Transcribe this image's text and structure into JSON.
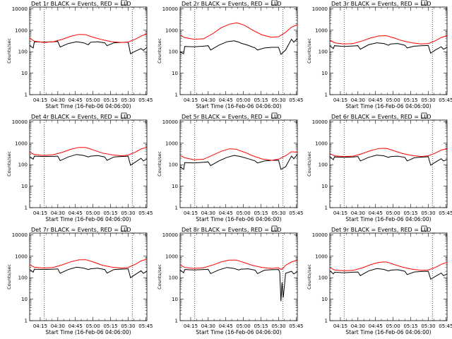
{
  "figure": {
    "y_axis_label": "Counts/sec",
    "x_axis_label": "Start Time (16-Feb-06 04:06:00)",
    "x_tick_labels": [
      "04:15",
      "04:30",
      "04:45",
      "05:00",
      "05:15",
      "05:30",
      "05:45"
    ],
    "y_tick_labels": [
      "1",
      "10",
      "100",
      "1000",
      "10000"
    ]
  },
  "chart_data": [
    {
      "type": "line",
      "title": "Det 1r BLACK = Events, RED = LLD",
      "ylim": [
        1,
        12000
      ],
      "yscale": "log",
      "x_unit": "minutes after 04:06:00",
      "xlim": [
        0,
        100
      ],
      "vlines": [
        12.5,
        87.5
      ],
      "series": [
        {
          "color": "#000000",
          "x": [
            0,
            3,
            4,
            12,
            20,
            24,
            26,
            33,
            40,
            46,
            50,
            52,
            58,
            64,
            66,
            72,
            78,
            84,
            86,
            90,
            95,
            97,
            100
          ],
          "y": [
            190,
            150,
            290,
            280,
            290,
            300,
            165,
            240,
            290,
            260,
            210,
            275,
            290,
            260,
            190,
            260,
            270,
            280,
            80,
            105,
            140,
            115,
            160
          ]
        },
        {
          "color": "#ff0000",
          "x": [
            0,
            4,
            12,
            20,
            28,
            35,
            42,
            48,
            50,
            55,
            62,
            70,
            78,
            84,
            90,
            95,
            100
          ],
          "y": [
            430,
            310,
            270,
            290,
            380,
            520,
            640,
            620,
            560,
            460,
            360,
            290,
            270,
            280,
            380,
            530,
            700
          ]
        }
      ]
    },
    {
      "type": "line",
      "title": "Det 2r BLACK = Events, RED = LLD",
      "ylim": [
        1,
        12000
      ],
      "yscale": "log",
      "x_unit": "minutes after 04:06:00",
      "xlim": [
        0,
        100
      ],
      "vlines": [
        12.5,
        87.5
      ],
      "series": [
        {
          "color": "#000000",
          "x": [
            0,
            3,
            4,
            12,
            20,
            24,
            26,
            33,
            40,
            46,
            50,
            52,
            58,
            64,
            66,
            72,
            78,
            84,
            86,
            90,
            95,
            97,
            100
          ],
          "y": [
            100,
            80,
            175,
            170,
            180,
            190,
            120,
            200,
            290,
            320,
            280,
            250,
            200,
            150,
            120,
            150,
            160,
            160,
            75,
            120,
            380,
            280,
            400
          ]
        },
        {
          "color": "#ff0000",
          "x": [
            0,
            4,
            12,
            20,
            28,
            35,
            42,
            48,
            50,
            55,
            62,
            70,
            78,
            84,
            90,
            95,
            100
          ],
          "y": [
            600,
            450,
            380,
            400,
            700,
            1300,
            1900,
            2200,
            2100,
            1700,
            1000,
            600,
            470,
            500,
            800,
            1400,
            1800
          ]
        }
      ]
    },
    {
      "type": "line",
      "title": "Det 3r BLACK = Events, RED = LLD",
      "ylim": [
        1,
        12000
      ],
      "yscale": "log",
      "x_unit": "minutes after 04:06:00",
      "xlim": [
        0,
        100
      ],
      "vlines": [
        12.5,
        87.5
      ],
      "series": [
        {
          "color": "#000000",
          "x": [
            0,
            3,
            4,
            12,
            20,
            24,
            26,
            33,
            40,
            46,
            50,
            52,
            58,
            64,
            66,
            72,
            78,
            84,
            86,
            90,
            95,
            97,
            100
          ],
          "y": [
            190,
            140,
            190,
            175,
            185,
            190,
            130,
            210,
            260,
            240,
            200,
            230,
            240,
            200,
            150,
            180,
            190,
            195,
            85,
            120,
            170,
            130,
            160
          ]
        },
        {
          "color": "#ff0000",
          "x": [
            0,
            4,
            12,
            20,
            28,
            35,
            42,
            48,
            50,
            55,
            62,
            70,
            78,
            84,
            90,
            95,
            100
          ],
          "y": [
            350,
            260,
            230,
            240,
            320,
            440,
            540,
            560,
            520,
            430,
            320,
            260,
            230,
            240,
            320,
            460,
            560
          ]
        }
      ]
    },
    {
      "type": "line",
      "title": "Det 4r BLACK = Events, RED = LLD",
      "ylim": [
        1,
        12000
      ],
      "yscale": "log",
      "x_unit": "minutes after 04:06:00",
      "xlim": [
        0,
        100
      ],
      "vlines": [
        12.5,
        87.5
      ],
      "series": [
        {
          "color": "#000000",
          "x": [
            0,
            3,
            4,
            12,
            20,
            24,
            26,
            33,
            40,
            46,
            50,
            52,
            58,
            64,
            66,
            72,
            78,
            84,
            86,
            90,
            95,
            97,
            100
          ],
          "y": [
            240,
            180,
            250,
            240,
            245,
            250,
            155,
            230,
            300,
            270,
            230,
            250,
            265,
            230,
            160,
            230,
            240,
            250,
            95,
            130,
            200,
            150,
            185
          ]
        },
        {
          "color": "#ff0000",
          "x": [
            0,
            4,
            12,
            20,
            28,
            35,
            42,
            48,
            50,
            55,
            62,
            70,
            78,
            84,
            90,
            95,
            100
          ],
          "y": [
            380,
            300,
            270,
            290,
            380,
            520,
            640,
            630,
            580,
            470,
            350,
            290,
            260,
            280,
            380,
            540,
            640
          ]
        }
      ]
    },
    {
      "type": "line",
      "title": "Det 5r BLACK = Events, RED = LLD",
      "ylim": [
        1,
        12000
      ],
      "yscale": "log",
      "x_unit": "minutes after 04:06:00",
      "xlim": [
        0,
        100
      ],
      "vlines": [
        12.5,
        87.5
      ],
      "series": [
        {
          "color": "#000000",
          "x": [
            0,
            3,
            4,
            12,
            20,
            24,
            26,
            33,
            40,
            46,
            50,
            52,
            58,
            64,
            66,
            72,
            78,
            84,
            86,
            90,
            95,
            97,
            100
          ],
          "y": [
            80,
            60,
            125,
            120,
            130,
            135,
            90,
            150,
            220,
            270,
            250,
            235,
            190,
            150,
            120,
            150,
            160,
            160,
            60,
            80,
            250,
            190,
            300
          ]
        },
        {
          "color": "#ff0000",
          "x": [
            0,
            4,
            12,
            20,
            28,
            35,
            42,
            48,
            50,
            55,
            62,
            70,
            78,
            84,
            90,
            95,
            100
          ],
          "y": [
            270,
            210,
            170,
            180,
            280,
            420,
            550,
            530,
            470,
            380,
            260,
            185,
            160,
            180,
            260,
            400,
            380
          ]
        }
      ]
    },
    {
      "type": "line",
      "title": "Det 6r BLACK = Events, RED = LLD",
      "ylim": [
        1,
        12000
      ],
      "yscale": "log",
      "x_unit": "minutes after 04:06:00",
      "xlim": [
        0,
        100
      ],
      "vlines": [
        12.5,
        87.5
      ],
      "series": [
        {
          "color": "#000000",
          "x": [
            0,
            3,
            4,
            12,
            20,
            24,
            26,
            33,
            40,
            46,
            50,
            52,
            58,
            64,
            66,
            72,
            78,
            84,
            86,
            90,
            95,
            97,
            100
          ],
          "y": [
            240,
            170,
            230,
            220,
            230,
            240,
            150,
            220,
            280,
            260,
            220,
            240,
            250,
            220,
            150,
            210,
            225,
            235,
            95,
            130,
            190,
            150,
            175
          ]
        },
        {
          "color": "#ff0000",
          "x": [
            0,
            4,
            12,
            20,
            28,
            35,
            42,
            48,
            50,
            55,
            62,
            70,
            78,
            84,
            90,
            95,
            100
          ],
          "y": [
            330,
            260,
            240,
            250,
            330,
            460,
            570,
            580,
            540,
            440,
            330,
            270,
            240,
            260,
            350,
            480,
            560
          ]
        }
      ]
    },
    {
      "type": "line",
      "title": "Det 7r BLACK = Events, RED = LLD",
      "ylim": [
        1,
        12000
      ],
      "yscale": "log",
      "x_unit": "minutes after 04:06:00",
      "xlim": [
        0,
        100
      ],
      "vlines": [
        12.5,
        87.5
      ],
      "series": [
        {
          "color": "#000000",
          "x": [
            0,
            3,
            4,
            12,
            20,
            24,
            26,
            33,
            40,
            46,
            50,
            52,
            58,
            64,
            66,
            72,
            78,
            84,
            86,
            90,
            95,
            97,
            100
          ],
          "y": [
            240,
            180,
            250,
            240,
            250,
            255,
            160,
            240,
            310,
            280,
            240,
            260,
            275,
            240,
            165,
            240,
            250,
            260,
            100,
            140,
            210,
            160,
            200
          ]
        },
        {
          "color": "#ff0000",
          "x": [
            0,
            4,
            12,
            20,
            28,
            35,
            42,
            48,
            50,
            55,
            62,
            70,
            78,
            84,
            90,
            95,
            100
          ],
          "y": [
            400,
            310,
            280,
            300,
            400,
            550,
            680,
            690,
            640,
            520,
            380,
            310,
            280,
            300,
            420,
            600,
            740
          ]
        }
      ]
    },
    {
      "type": "line",
      "title": "Det 8r BLACK = Events, RED = LLD",
      "ylim": [
        1,
        12000
      ],
      "yscale": "log",
      "x_unit": "minutes after 04:06:00",
      "xlim": [
        0,
        100
      ],
      "vlines": [
        12.5,
        87.5
      ],
      "series": [
        {
          "color": "#000000",
          "x": [
            0,
            3,
            4,
            12,
            20,
            24,
            26,
            33,
            40,
            46,
            50,
            52,
            58,
            64,
            66,
            72,
            78,
            84,
            85,
            86,
            87,
            88,
            90,
            95,
            97,
            100
          ],
          "y": [
            230,
            170,
            240,
            230,
            240,
            245,
            155,
            230,
            300,
            270,
            230,
            250,
            260,
            225,
            155,
            225,
            235,
            240,
            180,
            8,
            60,
            12,
            160,
            200,
            150,
            190
          ]
        },
        {
          "color": "#ff0000",
          "x": [
            0,
            4,
            12,
            20,
            28,
            35,
            42,
            48,
            50,
            55,
            62,
            70,
            78,
            84,
            86,
            88,
            90,
            95,
            100
          ],
          "y": [
            390,
            300,
            270,
            290,
            390,
            540,
            660,
            660,
            610,
            500,
            370,
            300,
            270,
            290,
            240,
            280,
            380,
            540,
            650
          ]
        }
      ]
    },
    {
      "type": "line",
      "title": "Det 9r BLACK = Events, RED = LLD",
      "ylim": [
        1,
        12000
      ],
      "yscale": "log",
      "x_unit": "minutes after 04:06:00",
      "xlim": [
        0,
        100
      ],
      "vlines": [
        12.5,
        87.5
      ],
      "series": [
        {
          "color": "#000000",
          "x": [
            0,
            3,
            4,
            12,
            20,
            24,
            26,
            33,
            40,
            46,
            50,
            52,
            58,
            64,
            66,
            72,
            78,
            84,
            86,
            90,
            95,
            97,
            100
          ],
          "y": [
            210,
            150,
            180,
            170,
            180,
            185,
            125,
            205,
            265,
            245,
            205,
            225,
            235,
            200,
            140,
            185,
            195,
            200,
            85,
            115,
            165,
            125,
            150
          ]
        },
        {
          "color": "#ff0000",
          "x": [
            0,
            4,
            12,
            20,
            28,
            35,
            42,
            48,
            50,
            55,
            62,
            70,
            78,
            84,
            90,
            95,
            100
          ],
          "y": [
            300,
            230,
            210,
            220,
            290,
            410,
            520,
            540,
            510,
            410,
            310,
            250,
            220,
            230,
            300,
            420,
            520
          ]
        }
      ]
    }
  ]
}
